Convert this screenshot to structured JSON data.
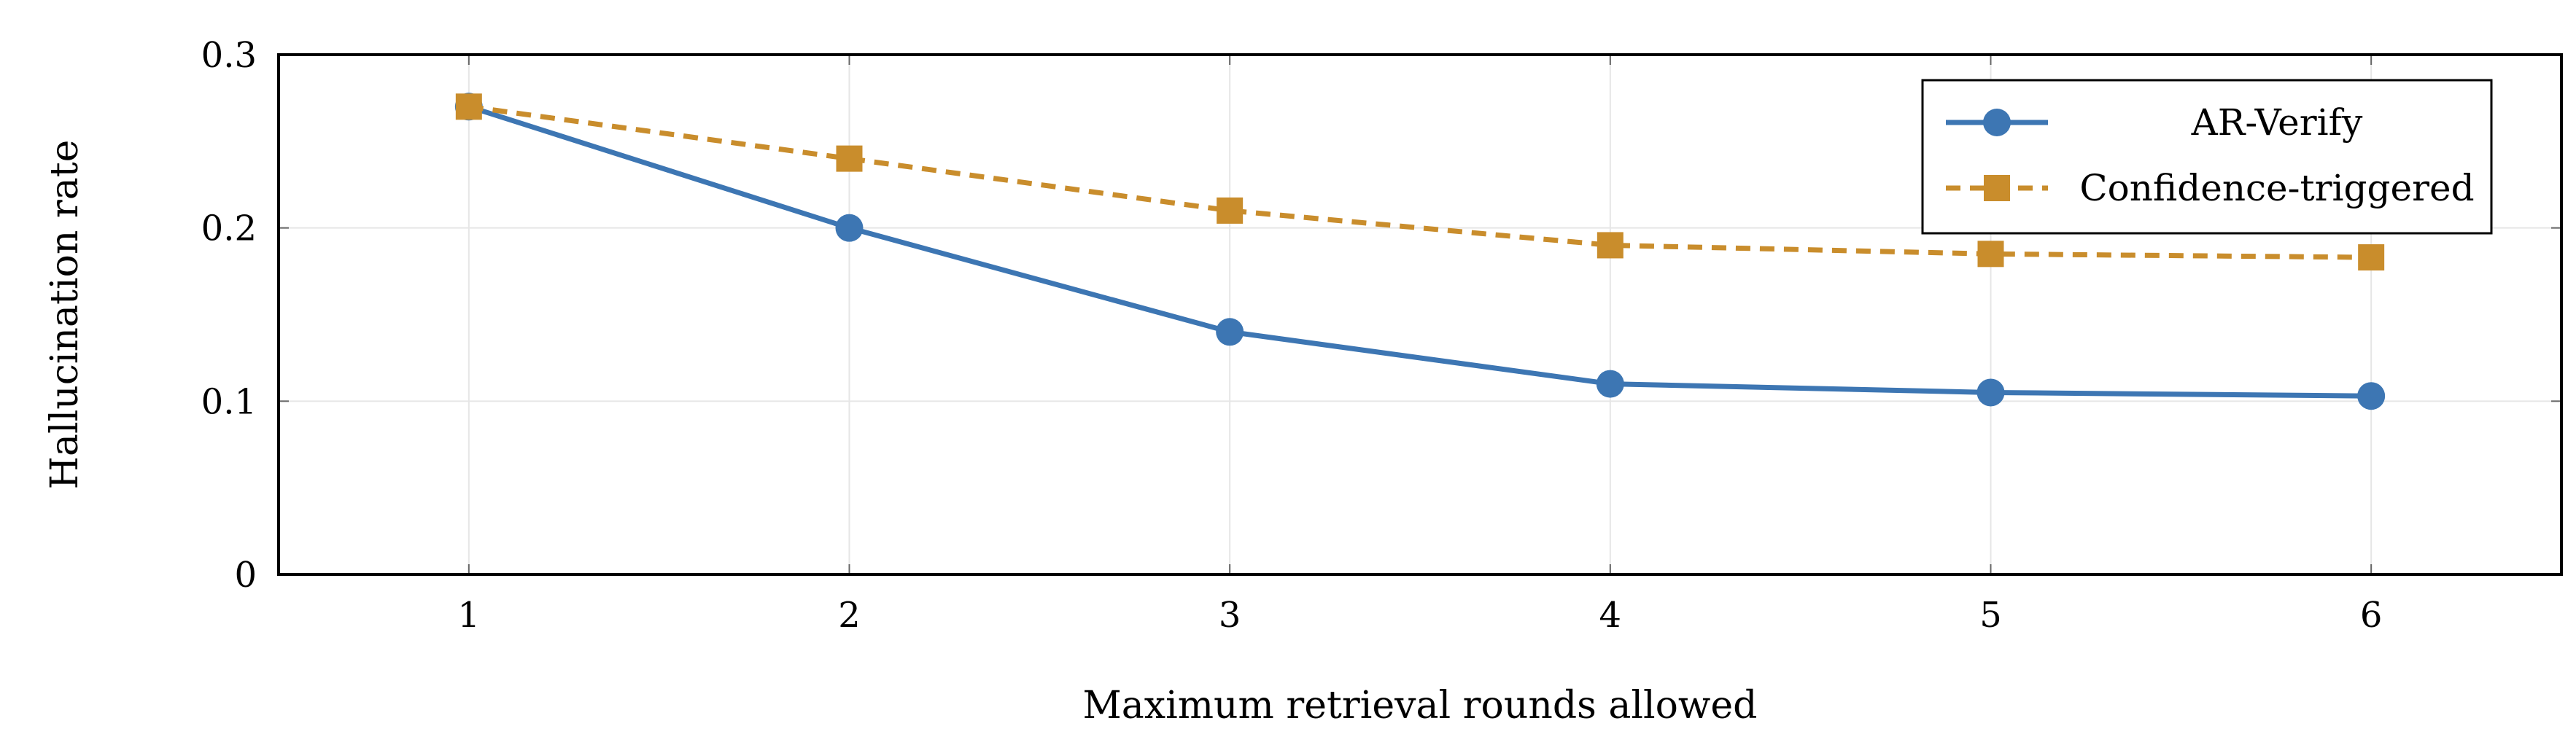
{
  "chart_data": {
    "type": "line",
    "title": "",
    "xlabel": "Maximum retrieval rounds allowed",
    "ylabel": "Hallucination rate",
    "x": [
      1,
      2,
      3,
      4,
      5,
      6
    ],
    "xticks": [
      "1",
      "2",
      "3",
      "4",
      "5",
      "6"
    ],
    "yticks": [
      "0",
      "0.1",
      "0.2",
      "0.3"
    ],
    "xlim": [
      0.5,
      6.5
    ],
    "ylim": [
      0,
      0.3
    ],
    "grid": true,
    "legend_position": "top-right",
    "series": [
      {
        "name": "AR-Verify",
        "values": [
          0.27,
          0.2,
          0.14,
          0.11,
          0.105,
          0.103
        ],
        "color": "#3d76b3",
        "marker": "circle",
        "line_style": "solid"
      },
      {
        "name": "Confidence-triggered",
        "values": [
          0.27,
          0.24,
          0.21,
          0.19,
          0.185,
          0.183
        ],
        "color": "#c98d2c",
        "marker": "square",
        "line_style": "dashed"
      }
    ]
  }
}
